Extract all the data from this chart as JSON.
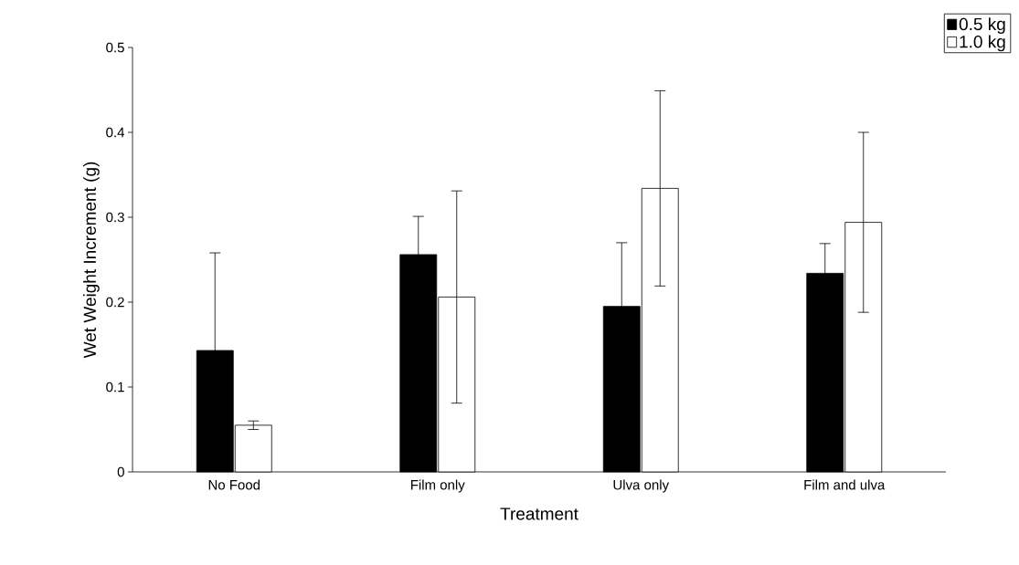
{
  "chart_data": {
    "type": "bar",
    "xlabel": "Treatment",
    "ylabel": "Wet Weight Increment (g)",
    "categories": [
      "No Food",
      "Film only",
      "Ulva only",
      "Film and ulva"
    ],
    "series": [
      {
        "name": "0.5 kg",
        "color": "#000000",
        "values": [
          0.143,
          0.256,
          0.195,
          0.234
        ],
        "errors": [
          0.115,
          0.045,
          0.075,
          0.035
        ]
      },
      {
        "name": "1.0 kg",
        "color": "#ffffff",
        "values": [
          0.055,
          0.206,
          0.334,
          0.294
        ],
        "errors": [
          0.005,
          0.125,
          0.115,
          0.106
        ]
      }
    ],
    "ylim": [
      0,
      0.5
    ],
    "yticks": [
      0,
      0.1,
      0.2,
      0.3,
      0.4,
      0.5
    ],
    "grid": false,
    "legend": "top right"
  }
}
